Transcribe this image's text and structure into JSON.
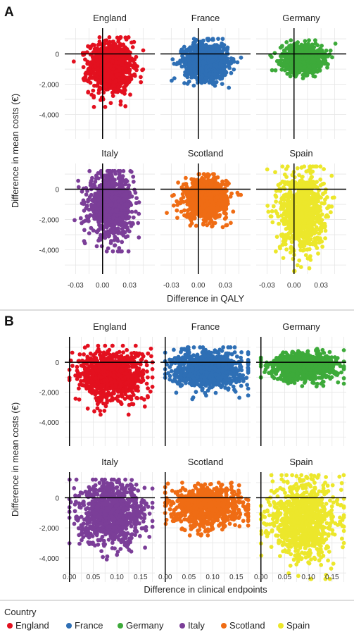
{
  "panel_labels": [
    "A",
    "B"
  ],
  "legend": {
    "title": "Country",
    "items": [
      {
        "name": "England",
        "color": "#e3101f"
      },
      {
        "name": "France",
        "color": "#2e6fb5"
      },
      {
        "name": "Germany",
        "color": "#3daa3a"
      },
      {
        "name": "Italy",
        "color": "#7b3e98"
      },
      {
        "name": "Scotland",
        "color": "#ef6c14"
      },
      {
        "name": "Spain",
        "color": "#ece72b"
      }
    ]
  },
  "chart_data": [
    {
      "type": "scatter",
      "panel": "A",
      "xlabel": "Difference in QALY",
      "ylabel": "Difference in mean costs (€)",
      "xlim": [
        -0.042,
        0.058
      ],
      "ylim": [
        -5600,
        1700
      ],
      "xticks": [
        -0.03,
        0.0,
        0.03
      ],
      "xtick_labels": [
        "-0.03",
        "0.00",
        "0.03"
      ],
      "yticks": [
        -4000,
        -2000,
        0
      ],
      "ytick_labels": [
        "-4,000",
        "-2,000",
        "0"
      ],
      "vline": 0,
      "hline": 0,
      "grid": true,
      "facets": [
        {
          "name": "England",
          "center": [
            0.009,
            -900
          ],
          "spread": [
            0.012,
            850
          ],
          "xrange": [
            -0.032,
            0.048
          ],
          "yrange": [
            -3500,
            1100
          ]
        },
        {
          "name": "France",
          "center": [
            0.009,
            -500
          ],
          "spread": [
            0.012,
            600
          ],
          "xrange": [
            -0.035,
            0.05
          ],
          "yrange": [
            -2800,
            1000
          ]
        },
        {
          "name": "Germany",
          "center": [
            0.009,
            -300
          ],
          "spread": [
            0.011,
            450
          ],
          "xrange": [
            -0.032,
            0.046
          ],
          "yrange": [
            -2100,
            900
          ]
        },
        {
          "name": "Italy",
          "center": [
            0.009,
            -1100
          ],
          "spread": [
            0.012,
            1000
          ],
          "xrange": [
            -0.032,
            0.052
          ],
          "yrange": [
            -4100,
            1200
          ]
        },
        {
          "name": "Scotland",
          "center": [
            0.008,
            -600
          ],
          "spread": [
            0.012,
            650
          ],
          "xrange": [
            -0.035,
            0.048
          ],
          "yrange": [
            -2500,
            1000
          ]
        },
        {
          "name": "Spain",
          "center": [
            0.009,
            -1500
          ],
          "spread": [
            0.012,
            1300
          ],
          "xrange": [
            -0.032,
            0.05
          ],
          "yrange": [
            -5400,
            1500
          ]
        }
      ]
    },
    {
      "type": "scatter",
      "panel": "B",
      "xlabel": "Difference in clinical endpoints",
      "ylabel": "Difference in mean costs (€)",
      "xlim": [
        -0.01,
        0.18
      ],
      "ylim": [
        -5600,
        1700
      ],
      "xticks": [
        0.0,
        0.05,
        0.1,
        0.15
      ],
      "xtick_labels": [
        "0.00",
        "0.05",
        "0.10",
        "0.15"
      ],
      "yticks": [
        -4000,
        -2000,
        0
      ],
      "ytick_labels": [
        "-4,000",
        "-2,000",
        "0"
      ],
      "vline": 0,
      "hline": 0,
      "grid": true,
      "facets": [
        {
          "name": "England",
          "center": [
            0.09,
            -900
          ],
          "spread": [
            0.035,
            850
          ],
          "xrange": [
            0.0,
            0.175
          ],
          "yrange": [
            -3500,
            1100
          ]
        },
        {
          "name": "France",
          "center": [
            0.09,
            -500
          ],
          "spread": [
            0.035,
            600
          ],
          "xrange": [
            0.0,
            0.175
          ],
          "yrange": [
            -2800,
            1000
          ]
        },
        {
          "name": "Germany",
          "center": [
            0.09,
            -300
          ],
          "spread": [
            0.035,
            450
          ],
          "xrange": [
            0.0,
            0.175
          ],
          "yrange": [
            -2100,
            900
          ]
        },
        {
          "name": "Italy",
          "center": [
            0.09,
            -1100
          ],
          "spread": [
            0.035,
            1000
          ],
          "xrange": [
            0.0,
            0.175
          ],
          "yrange": [
            -4100,
            1200
          ]
        },
        {
          "name": "Scotland",
          "center": [
            0.09,
            -600
          ],
          "spread": [
            0.035,
            650
          ],
          "xrange": [
            0.0,
            0.175
          ],
          "yrange": [
            -2500,
            1000
          ]
        },
        {
          "name": "Spain",
          "center": [
            0.09,
            -1500
          ],
          "spread": [
            0.035,
            1300
          ],
          "xrange": [
            0.0,
            0.175
          ],
          "yrange": [
            -5400,
            1500
          ]
        }
      ]
    }
  ]
}
